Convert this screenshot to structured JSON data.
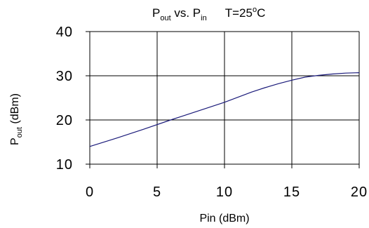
{
  "chart_data": {
    "type": "line",
    "title": {
      "main": "P",
      "main_sub": "out",
      "vs": " vs. P",
      "vs_sub": "in",
      "temp": "T=25",
      "temp_sup": "o",
      "temp_unit": "C"
    },
    "xlabel": "Pin (dBm)",
    "ylabel": {
      "main": "P",
      "sub": "out",
      "unit": " (dBm)"
    },
    "xlim": [
      0,
      20
    ],
    "ylim": [
      10,
      40
    ],
    "xticks": [
      0,
      5,
      10,
      15,
      20
    ],
    "yticks": [
      10,
      20,
      30,
      40
    ],
    "grid": true,
    "legend": "none",
    "line_color": "#1a1a7a",
    "series": [
      {
        "x": [
          0,
          2,
          4,
          6,
          8,
          10,
          12,
          13,
          14,
          15,
          16,
          17,
          18,
          19,
          20
        ],
        "y": [
          14,
          15.9,
          17.9,
          20,
          22,
          24,
          26.3,
          27.3,
          28.2,
          29.0,
          29.7,
          30.1,
          30.4,
          30.6,
          30.7
        ]
      }
    ]
  }
}
